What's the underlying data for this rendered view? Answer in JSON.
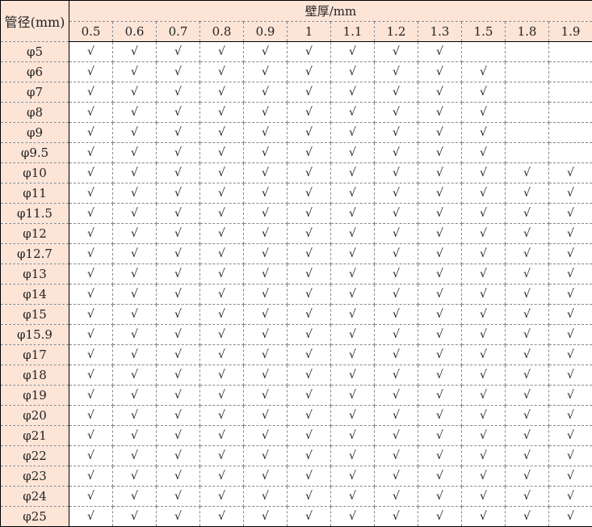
{
  "table": {
    "corner_label": "管径(mm)",
    "group_header": "壁厚/mm",
    "columns": [
      "0.5",
      "0.6",
      "0.7",
      "0.8",
      "0.9",
      "1",
      "1.1",
      "1.2",
      "1.3",
      "1.5",
      "1.8",
      "1.9"
    ],
    "rows": [
      {
        "label": "φ5",
        "cells": [
          "√",
          "√",
          "√",
          "√",
          "√",
          "√",
          "√",
          "√",
          "√",
          "",
          "",
          ""
        ]
      },
      {
        "label": "φ6",
        "cells": [
          "√",
          "√",
          "√",
          "√",
          "√",
          "√",
          "√",
          "√",
          "√",
          "√",
          "",
          ""
        ]
      },
      {
        "label": "φ7",
        "cells": [
          "√",
          "√",
          "√",
          "√",
          "√",
          "√",
          "√",
          "√",
          "√",
          "√",
          "",
          ""
        ]
      },
      {
        "label": "φ8",
        "cells": [
          "√",
          "√",
          "√",
          "√",
          "√",
          "√",
          "√",
          "√",
          "√",
          "√",
          "",
          ""
        ]
      },
      {
        "label": "φ9",
        "cells": [
          "√",
          "√",
          "√",
          "√",
          "√",
          "√",
          "√",
          "√",
          "√",
          "√",
          "",
          ""
        ]
      },
      {
        "label": "φ9.5",
        "cells": [
          "√",
          "√",
          "√",
          "√",
          "√",
          "√",
          "√",
          "√",
          "√",
          "√",
          "",
          ""
        ]
      },
      {
        "label": "φ10",
        "cells": [
          "√",
          "√",
          "√",
          "√",
          "√",
          "√",
          "√",
          "√",
          "√",
          "√",
          "√",
          "√"
        ]
      },
      {
        "label": "φ11",
        "cells": [
          "√",
          "√",
          "√",
          "√",
          "√",
          "√",
          "√",
          "√",
          "√",
          "√",
          "√",
          "√"
        ]
      },
      {
        "label": "φ11.5",
        "cells": [
          "√",
          "√",
          "√",
          "√",
          "√",
          "√",
          "√",
          "√",
          "√",
          "√",
          "√",
          "√"
        ]
      },
      {
        "label": "φ12",
        "cells": [
          "√",
          "√",
          "√",
          "√",
          "√",
          "√",
          "√",
          "√",
          "√",
          "√",
          "√",
          "√"
        ]
      },
      {
        "label": "φ12.7",
        "cells": [
          "√",
          "√",
          "√",
          "√",
          "√",
          "√",
          "√",
          "√",
          "√",
          "√",
          "√",
          "√"
        ]
      },
      {
        "label": "φ13",
        "cells": [
          "√",
          "√",
          "√",
          "√",
          "√",
          "√",
          "√",
          "√",
          "√",
          "√",
          "√",
          "√"
        ]
      },
      {
        "label": "φ14",
        "cells": [
          "√",
          "√",
          "√",
          "√",
          "√",
          "√",
          "√",
          "√",
          "√",
          "√",
          "√",
          "√"
        ]
      },
      {
        "label": "φ15",
        "cells": [
          "√",
          "√",
          "√",
          "√",
          "√",
          "√",
          "√",
          "√",
          "√",
          "√",
          "√",
          "√"
        ]
      },
      {
        "label": "φ15.9",
        "cells": [
          "√",
          "√",
          "√",
          "√",
          "√",
          "√",
          "√",
          "√",
          "√",
          "√",
          "√",
          "√"
        ]
      },
      {
        "label": "φ17",
        "cells": [
          "√",
          "√",
          "√",
          "√",
          "√",
          "√",
          "√",
          "√",
          "√",
          "√",
          "√",
          "√"
        ]
      },
      {
        "label": "φ18",
        "cells": [
          "√",
          "√",
          "√",
          "√",
          "√",
          "√",
          "√",
          "√",
          "√",
          "√",
          "√",
          "√"
        ]
      },
      {
        "label": "φ19",
        "cells": [
          "√",
          "√",
          "√",
          "√",
          "√",
          "√",
          "√",
          "√",
          "√",
          "√",
          "√",
          "√"
        ]
      },
      {
        "label": "φ20",
        "cells": [
          "√",
          "√",
          "√",
          "√",
          "√",
          "√",
          "√",
          "√",
          "√",
          "√",
          "√",
          "√"
        ]
      },
      {
        "label": "φ21",
        "cells": [
          "√",
          "√",
          "√",
          "√",
          "√",
          "√",
          "√",
          "√",
          "√",
          "√",
          "√",
          "√"
        ]
      },
      {
        "label": "φ22",
        "cells": [
          "√",
          "√",
          "√",
          "√",
          "√",
          "√",
          "√",
          "√",
          "√",
          "√",
          "√",
          "√"
        ]
      },
      {
        "label": "φ23",
        "cells": [
          "√",
          "√",
          "√",
          "√",
          "√",
          "√",
          "√",
          "√",
          "√",
          "√",
          "√",
          "√"
        ]
      },
      {
        "label": "φ24",
        "cells": [
          "√",
          "√",
          "√",
          "√",
          "√",
          "√",
          "√",
          "√",
          "√",
          "√",
          "√",
          "√"
        ]
      },
      {
        "label": "φ25",
        "cells": [
          "√",
          "√",
          "√",
          "√",
          "√",
          "√",
          "√",
          "√",
          "√",
          "√",
          "√",
          "√"
        ]
      }
    ]
  },
  "colors": {
    "header_bg": "#fce4d6",
    "grid": "#888888",
    "border": "#000000"
  }
}
